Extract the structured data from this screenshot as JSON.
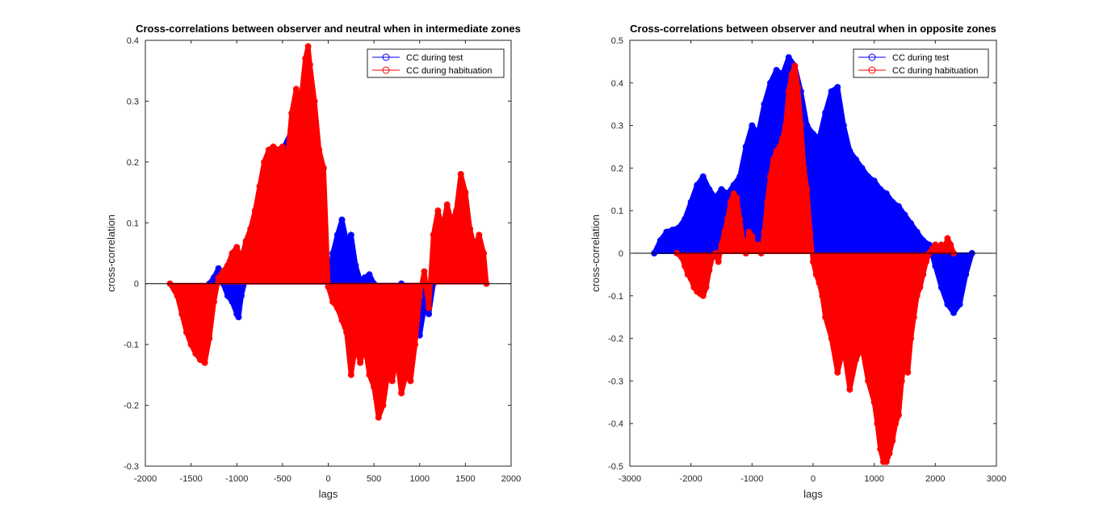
{
  "chart_data": [
    {
      "type": "line",
      "title": "Cross-correlations between observer and neutral when in intermediate zones",
      "xlabel": "lags",
      "ylabel": "cross-correlation",
      "xlim": [
        -2000,
        2000
      ],
      "ylim": [
        -0.3,
        0.4
      ],
      "xticks": [
        -2000,
        -1500,
        -1000,
        -500,
        0,
        500,
        1000,
        1500,
        2000
      ],
      "yticks": [
        -0.3,
        -0.2,
        -0.1,
        0,
        0.1,
        0.2,
        0.3,
        0.4
      ],
      "xtick_labels": [
        "-2000",
        "-1500",
        "-1000",
        "-500",
        "0",
        "500",
        "1000",
        "1500",
        "2000"
      ],
      "ytick_labels": [
        "-0.3",
        "-0.2",
        "-0.1",
        "0",
        "0.1",
        "0.2",
        "0.3",
        "0.4"
      ],
      "grid": false,
      "legend": "top-right",
      "series": [
        {
          "name": "CC during test",
          "color": "#0000ff",
          "x": [
            -1300,
            -1250,
            -1200,
            -1150,
            -1100,
            -1050,
            -1000,
            -980,
            -950,
            -900,
            -850,
            -800,
            -700,
            -600,
            -500,
            -400,
            -300,
            -200,
            -100,
            0,
            50,
            100,
            150,
            200,
            250,
            300,
            350,
            400,
            450,
            500,
            550,
            600,
            700,
            800,
            850,
            900,
            950,
            1000,
            1050,
            1100,
            1150
          ],
          "y": [
            0,
            0.01,
            0.025,
            0.0,
            -0.02,
            -0.03,
            -0.05,
            -0.055,
            -0.02,
            0.01,
            0.03,
            0.06,
            0.12,
            0.18,
            0.22,
            0.25,
            0.3,
            0.2,
            0.1,
            0,
            0.05,
            0.08,
            0.105,
            0.07,
            0.08,
            0.03,
            0.005,
            0.01,
            0.015,
            0,
            -0.03,
            -0.06,
            -0.03,
            0.0,
            -0.02,
            -0.05,
            -0.07,
            -0.085,
            -0.04,
            -0.05,
            0
          ]
        },
        {
          "name": "CC during habituation",
          "color": "#ff0000",
          "x": [
            -1730,
            -1650,
            -1600,
            -1550,
            -1500,
            -1450,
            -1400,
            -1350,
            -1300,
            -1250,
            -1200,
            -1150,
            -1100,
            -1050,
            -1000,
            -950,
            -900,
            -850,
            -800,
            -750,
            -700,
            -650,
            -600,
            -550,
            -500,
            -450,
            -400,
            -350,
            -300,
            -250,
            -220,
            -200,
            -150,
            -100,
            -50,
            0,
            50,
            100,
            150,
            200,
            250,
            300,
            350,
            400,
            450,
            500,
            550,
            600,
            650,
            700,
            750,
            800,
            850,
            900,
            950,
            1000,
            1050,
            1100,
            1150,
            1200,
            1250,
            1300,
            1350,
            1400,
            1450,
            1500,
            1550,
            1600,
            1650,
            1700,
            1730
          ],
          "y": [
            0,
            -0.02,
            -0.05,
            -0.08,
            -0.1,
            -0.115,
            -0.125,
            -0.13,
            -0.09,
            -0.03,
            0.01,
            0.02,
            0.03,
            0.05,
            0.06,
            0.04,
            0.07,
            0.09,
            0.12,
            0.16,
            0.2,
            0.22,
            0.225,
            0.22,
            0.225,
            0.2,
            0.28,
            0.32,
            0.3,
            0.37,
            0.39,
            0.36,
            0.3,
            0.22,
            0.19,
            -0.005,
            -0.03,
            -0.04,
            -0.06,
            -0.08,
            -0.15,
            -0.1,
            -0.13,
            -0.1,
            -0.15,
            -0.17,
            -0.22,
            -0.2,
            -0.15,
            -0.16,
            -0.12,
            -0.18,
            -0.15,
            -0.16,
            -0.1,
            -0.02,
            0.02,
            -0.04,
            0.08,
            0.12,
            0.09,
            0.13,
            0.1,
            0.12,
            0.18,
            0.15,
            0.09,
            0.06,
            0.08,
            0.05,
            0.0
          ]
        }
      ]
    },
    {
      "type": "line",
      "title": "Cross-correlations between observer and neutral when in opposite zones",
      "xlabel": "lags",
      "ylabel": "cross-correlation",
      "xlim": [
        -3000,
        3000
      ],
      "ylim": [
        -0.5,
        0.5
      ],
      "xticks": [
        -3000,
        -2000,
        -1000,
        0,
        1000,
        2000,
        3000
      ],
      "yticks": [
        -0.5,
        -0.4,
        -0.3,
        -0.2,
        -0.1,
        0,
        0.1,
        0.2,
        0.3,
        0.4,
        0.5
      ],
      "xtick_labels": [
        "-3000",
        "-2000",
        "-1000",
        "0",
        "1000",
        "2000",
        "3000"
      ],
      "ytick_labels": [
        "-0.5",
        "-0.4",
        "-0.3",
        "-0.2",
        "-0.1",
        "0",
        "0.1",
        "0.2",
        "0.3",
        "0.4",
        "0.5"
      ],
      "grid": false,
      "legend": "top-right",
      "series": [
        {
          "name": "CC during test",
          "color": "#0000ff",
          "x": [
            -2600,
            -2500,
            -2400,
            -2300,
            -2200,
            -2100,
            -2000,
            -1900,
            -1800,
            -1700,
            -1600,
            -1500,
            -1400,
            -1300,
            -1200,
            -1100,
            -1000,
            -900,
            -800,
            -700,
            -600,
            -500,
            -400,
            -300,
            -200,
            -100,
            0,
            100,
            200,
            300,
            400,
            500,
            600,
            700,
            800,
            900,
            1000,
            1100,
            1200,
            1300,
            1400,
            1500,
            1600,
            1700,
            1800,
            1900,
            2000,
            2100,
            2200,
            2300,
            2400,
            2500,
            2600
          ],
          "y": [
            0,
            0.03,
            0.05,
            0.055,
            0.06,
            0.08,
            0.12,
            0.16,
            0.18,
            0.15,
            0.13,
            0.15,
            0.14,
            0.16,
            0.18,
            0.25,
            0.3,
            0.28,
            0.35,
            0.4,
            0.43,
            0.42,
            0.46,
            0.44,
            0.38,
            0.3,
            0.28,
            0.27,
            0.33,
            0.38,
            0.39,
            0.3,
            0.24,
            0.22,
            0.2,
            0.18,
            0.17,
            0.15,
            0.14,
            0.12,
            0.11,
            0.09,
            0.07,
            0.05,
            0.03,
            0.02,
            -0.03,
            -0.08,
            -0.12,
            -0.14,
            -0.12,
            -0.05,
            0
          ]
        },
        {
          "name": "CC during habituation",
          "color": "#ff0000",
          "x": [
            -2230,
            -2150,
            -2100,
            -2050,
            -2000,
            -1950,
            -1900,
            -1850,
            -1800,
            -1750,
            -1700,
            -1650,
            -1600,
            -1550,
            -1500,
            -1450,
            -1400,
            -1350,
            -1300,
            -1250,
            -1200,
            -1150,
            -1100,
            -1050,
            -1000,
            -950,
            -900,
            -850,
            -800,
            -750,
            -700,
            -650,
            -600,
            -550,
            -500,
            -450,
            -400,
            -350,
            -300,
            -250,
            -200,
            -150,
            -100,
            -50,
            0,
            50,
            100,
            150,
            200,
            300,
            400,
            500,
            600,
            700,
            800,
            900,
            1000,
            1050,
            1100,
            1150,
            1200,
            1250,
            1300,
            1350,
            1400,
            1450,
            1500,
            1550,
            1600,
            1650,
            1700,
            1750,
            1800,
            1850,
            1900,
            1950,
            2000,
            2050,
            2100,
            2150,
            2200,
            2250,
            2300
          ],
          "y": [
            0,
            -0.01,
            -0.03,
            -0.05,
            -0.06,
            -0.08,
            -0.09,
            -0.095,
            -0.1,
            -0.08,
            -0.04,
            -0.01,
            0.0,
            -0.02,
            0.02,
            0.05,
            0.08,
            0.12,
            0.14,
            0.13,
            0.08,
            0.03,
            0.0,
            0.05,
            0.04,
            0.01,
            0.02,
            0.0,
            0.05,
            0.12,
            0.18,
            0.22,
            0.24,
            0.25,
            0.27,
            0.3,
            0.38,
            0.42,
            0.44,
            0.39,
            0.3,
            0.2,
            0.15,
            0.05,
            -0.02,
            -0.05,
            -0.07,
            -0.1,
            -0.15,
            -0.2,
            -0.28,
            -0.22,
            -0.32,
            -0.25,
            -0.22,
            -0.3,
            -0.35,
            -0.4,
            -0.46,
            -0.49,
            -0.49,
            -0.47,
            -0.44,
            -0.4,
            -0.38,
            -0.3,
            -0.25,
            -0.28,
            -0.2,
            -0.15,
            -0.1,
            -0.08,
            -0.05,
            -0.02,
            0.0,
            0.01,
            0.02,
            0.01,
            0.02,
            0.01,
            0.035,
            0.02,
            0.0
          ]
        }
      ]
    }
  ]
}
